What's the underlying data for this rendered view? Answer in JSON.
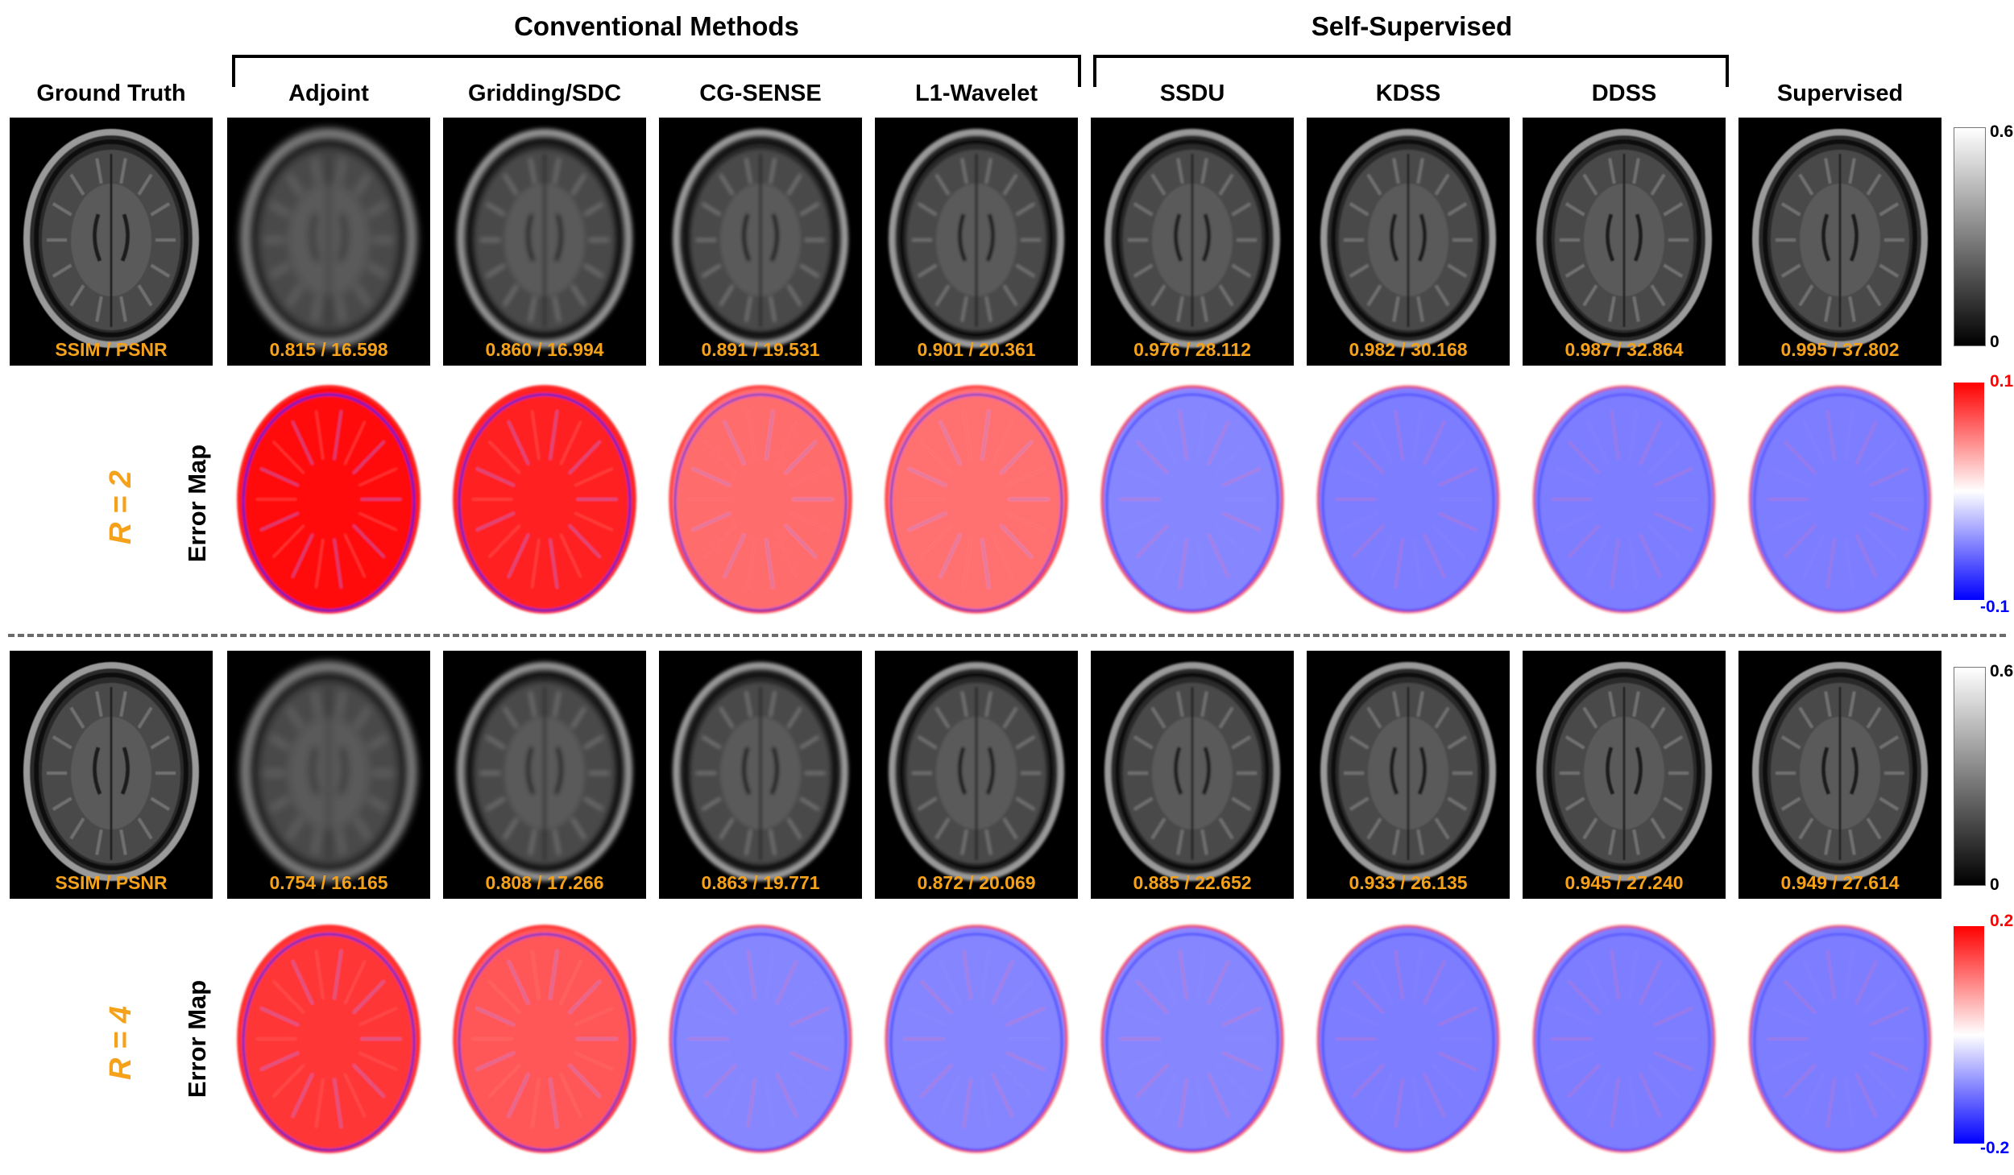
{
  "groups": {
    "conventional": "Conventional Methods",
    "self_supervised": "Self-Supervised"
  },
  "columns": [
    "Ground Truth",
    "Adjoint",
    "Gridding/SDC",
    "CG-SENSE",
    "L1-Wavelet",
    "SSDU",
    "KDSS",
    "DDSS",
    "Supervised"
  ],
  "metric_header": "SSIM / PSNR",
  "rows": [
    {
      "r_label": "R = 2",
      "error_label": "Error Map",
      "metrics": [
        "0.815 / 16.598",
        "0.860 / 16.994",
        "0.891 / 19.531",
        "0.901 / 20.361",
        "0.976 / 28.112",
        "0.982 / 30.168",
        "0.987 / 32.864",
        "0.995 / 37.802"
      ],
      "error_strength": [
        0.95,
        0.85,
        0.5,
        0.48,
        0.3,
        0.16,
        0.1,
        0.05
      ],
      "colorbar_gray": {
        "max": "0.6",
        "min": "0"
      },
      "colorbar_error": {
        "max": "0.1",
        "min": "-0.1"
      }
    },
    {
      "r_label": "R = 4",
      "error_label": "Error Map",
      "metrics": [
        "0.754 / 16.165",
        "0.808 / 17.266",
        "0.863 / 19.771",
        "0.872 / 20.069",
        "0.885 / 22.652",
        "0.933 / 26.135",
        "0.945 / 27.240",
        "0.949 / 27.614"
      ],
      "error_strength": [
        0.75,
        0.6,
        0.3,
        0.28,
        0.3,
        0.16,
        0.12,
        0.1
      ],
      "colorbar_gray": {
        "max": "0.6",
        "min": "0"
      },
      "colorbar_error": {
        "max": "0.2",
        "min": "-0.2"
      }
    }
  ],
  "colors": {
    "metric_text": "#f5a21a",
    "error_positive": "#ff0000",
    "error_negative": "#0000ff",
    "colorbar_max_label": "#ff0000",
    "colorbar_min_label": "#0000ff"
  }
}
